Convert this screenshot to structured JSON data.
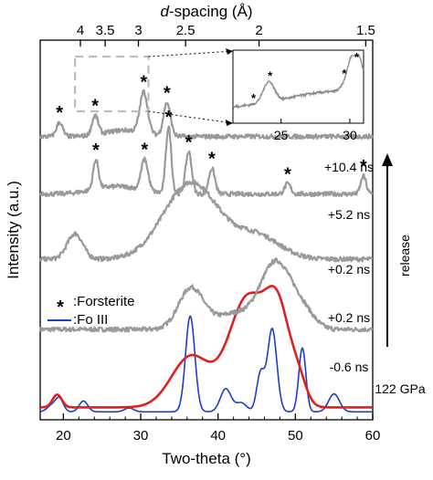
{
  "chart_data": {
    "type": "line",
    "xlabel": "Two-theta (°)",
    "ylabel": "Intensity (a.u.)",
    "top_axis_label": "d-spacing (Å)",
    "xlim": [
      17,
      60
    ],
    "x_ticks": [
      20,
      30,
      40,
      50,
      60
    ],
    "top_ticks": [
      {
        "label": "4",
        "two_theta": 22.2
      },
      {
        "label": "3.5",
        "two_theta": 25.4
      },
      {
        "label": "3",
        "two_theta": 29.7
      },
      {
        "label": "2.5",
        "two_theta": 35.8
      },
      {
        "label": "2",
        "two_theta": 45.3
      },
      {
        "label": "1.5",
        "two_theta": 59.1
      }
    ],
    "grid": false,
    "series": [
      {
        "name": "122 GPa",
        "color": "#1a3fc4",
        "offset": 0,
        "peaks": [
          [
            19.5,
            1.0,
            0.5
          ],
          [
            22.6,
            0.85,
            0.55
          ],
          [
            28.5,
            0.3,
            0.6
          ],
          [
            36.4,
            7.5,
            0.6
          ],
          [
            41.0,
            1.8,
            0.7
          ],
          [
            45.5,
            3.0,
            0.5
          ],
          [
            47.0,
            6.5,
            0.6
          ],
          [
            50.9,
            5.0,
            0.45
          ],
          [
            55.0,
            1.4,
            0.7
          ],
          [
            18.5,
            0.5,
            0.6
          ],
          [
            43.0,
            0.7,
            0.7
          ]
        ],
        "base": 0.05
      },
      {
        "name": "-0.6 ns",
        "color": "#e02020",
        "offset": 0,
        "peaks": [
          [
            19.2,
            1.0,
            0.6
          ],
          [
            36.5,
            4.0,
            2.5
          ],
          [
            43.8,
            8.5,
            2.4
          ],
          [
            47.8,
            6.8,
            1.6
          ],
          [
            50.5,
            1.5,
            1.0
          ]
        ],
        "base": 0.4
      },
      {
        "name": "+0.2 ns",
        "color": "#9a9a9a",
        "offset": 6.0,
        "peaks": [
          [
            36.5,
            3.2,
            1.6
          ],
          [
            42.0,
            1.2,
            2.5
          ],
          [
            47.5,
            5.2,
            2.0
          ],
          [
            51.0,
            1.2,
            1.5
          ]
        ],
        "base": 0.5
      },
      {
        "name": "+0.2 ns",
        "color": "#9a9a9a",
        "offset": 11.5,
        "peaks": [
          [
            21.5,
            2.0,
            1.0
          ],
          [
            36.5,
            6.0,
            3.5
          ],
          [
            45.0,
            1.8,
            3.0
          ]
        ],
        "base": 0.5
      },
      {
        "name": "+5.2 ns",
        "color": "#9a9a9a",
        "offset": 16.5,
        "peaks": [
          [
            24.2,
            2.3,
            0.35
          ],
          [
            30.5,
            2.4,
            0.45
          ],
          [
            33.6,
            5.2,
            0.35
          ],
          [
            36.2,
            3.3,
            0.4
          ],
          [
            39.2,
            2.0,
            0.4
          ],
          [
            49.0,
            0.8,
            0.4
          ],
          [
            58.8,
            1.4,
            0.35
          ],
          [
            27.0,
            0.6,
            3.0
          ]
        ],
        "base": 0.6
      },
      {
        "name": "+10.4 ns",
        "color": "#9a9a9a",
        "offset": 21.0,
        "peaks": [
          [
            19.5,
            1.1,
            0.4
          ],
          [
            24.1,
            1.5,
            0.4
          ],
          [
            30.4,
            3.2,
            0.5
          ],
          [
            33.4,
            2.6,
            0.45
          ],
          [
            28.0,
            0.5,
            2.5
          ]
        ],
        "base": 0.6
      }
    ],
    "trace_labels": [
      {
        "text": "+10.4 ns"
      },
      {
        "text": "+5.2 ns"
      },
      {
        "text": "+0.2 ns"
      },
      {
        "text": "+0.2 ns"
      },
      {
        "text": "-0.6 ns"
      },
      {
        "text": "122 GPa"
      }
    ],
    "forsterite_markers_two_theta": {
      "+5.2 ns": [
        24.2,
        30.5,
        33.6,
        36.2,
        39.2,
        49.0,
        58.8
      ],
      "+10.4 ns": [
        19.5,
        24.1,
        30.4,
        33.4
      ]
    },
    "legend": {
      "placement": "left",
      "entries": [
        {
          "symbol": "*",
          "label": ":Forsterite"
        },
        {
          "symbol": "line",
          "color": "#1a3fc4",
          "label": ":Fo III"
        }
      ]
    },
    "arrow_label": "release",
    "inset": {
      "x_ticks": [
        {
          "label": "25"
        },
        {
          "label": "30"
        }
      ],
      "xlim": [
        21.5,
        31.0
      ],
      "markers_two_theta": [
        23.0,
        24.2,
        29.6,
        30.5
      ]
    }
  }
}
